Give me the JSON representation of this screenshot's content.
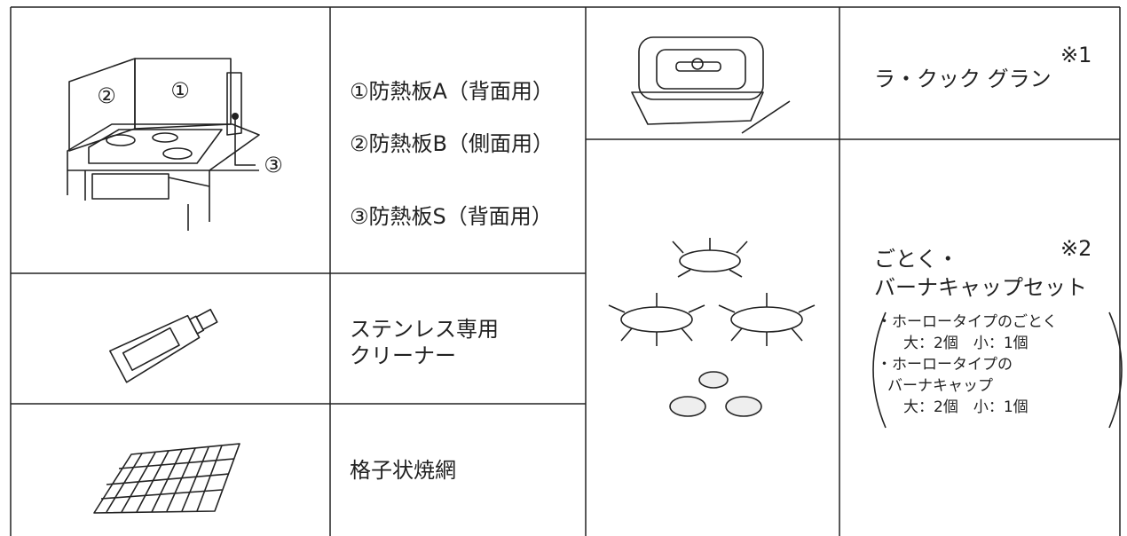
{
  "illustration_labels": [
    "②",
    "①",
    "③"
  ],
  "heat_shields": [
    "①防熱板A（背面用）",
    "②防熱板B（側面用）",
    "③防熱板S（背面用）"
  ],
  "cleaner": [
    "ステンレス専用",
    "クリーナー"
  ],
  "grill_net": "格子状焼網",
  "la_cook": {
    "name": "ラ・クック グラン",
    "note": "※1"
  },
  "trivet_set": {
    "name": [
      "ごとく・",
      "バーナキャップセット"
    ],
    "note": "※2",
    "details": [
      "・ホーロータイプのごとく",
      "大：2個　小：1個",
      "・ホーロータイプの",
      "バーナキャップ",
      "大：2個　小：1個"
    ]
  }
}
